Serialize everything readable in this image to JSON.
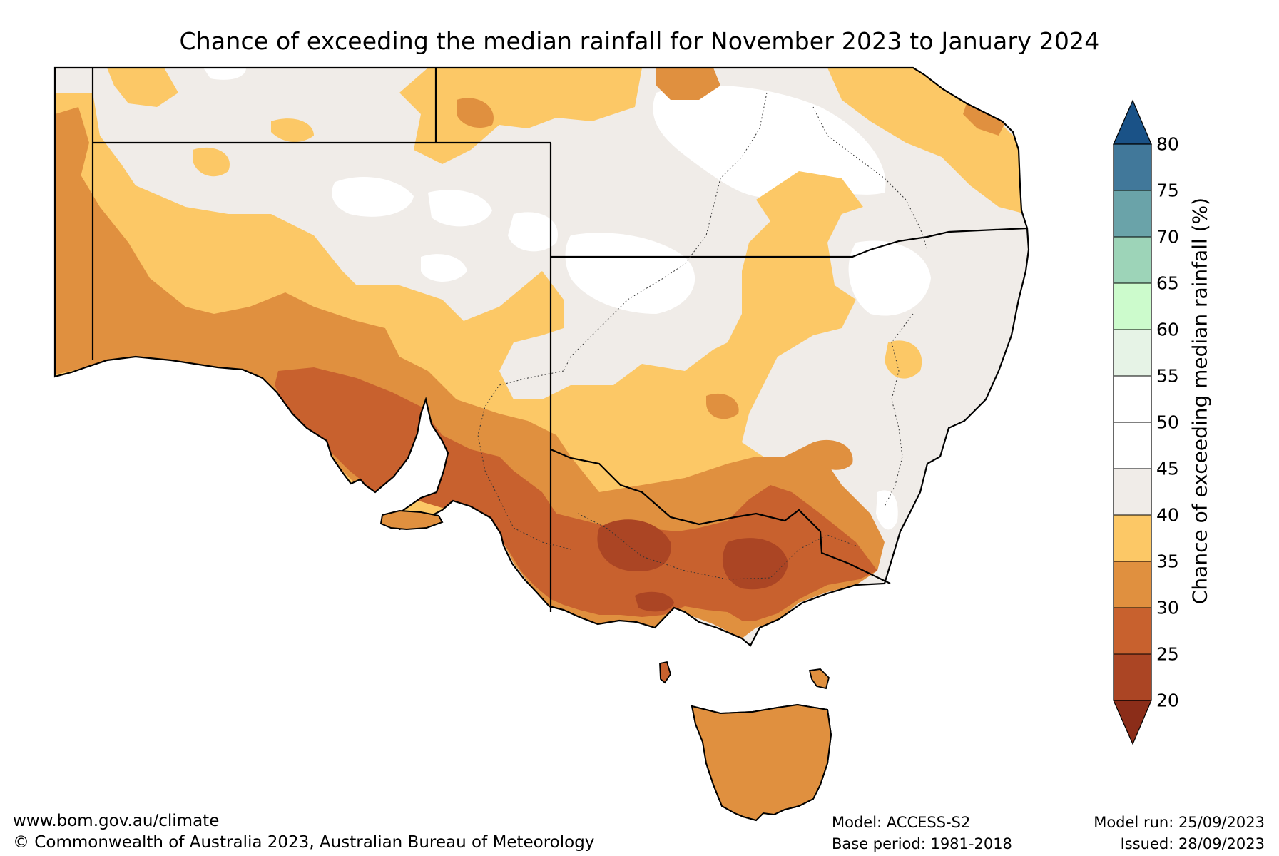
{
  "title": "Chance of exceeding the median rainfall for November 2023 to January 2024",
  "colorbar": {
    "label": "Chance of exceeding median rainfall (%)",
    "ticks": [
      "80",
      "75",
      "70",
      "65",
      "60",
      "55",
      "50",
      "45",
      "40",
      "35",
      "30",
      "25",
      "20"
    ],
    "bands": [
      {
        "range": "75-80",
        "color": "#41789a"
      },
      {
        "range": "70-75",
        "color": "#6aa3a9"
      },
      {
        "range": "65-70",
        "color": "#9dd4b8"
      },
      {
        "range": "60-65",
        "color": "#ccfbcc"
      },
      {
        "range": "55-60",
        "color": "#e6f3e6"
      },
      {
        "range": "50-55",
        "color": "#ffffff"
      },
      {
        "range": "45-50",
        "color": "#ffffff"
      },
      {
        "range": "40-45",
        "color": "#f0ece8"
      },
      {
        "range": "35-40",
        "color": "#fcc866"
      },
      {
        "range": "30-35",
        "color": "#e0903f"
      },
      {
        "range": "25-30",
        "color": "#c8612e"
      },
      {
        "range": "20-25",
        "color": "#ab4524"
      }
    ],
    "over_color": "#1a5287",
    "under_color": "#8b2d19"
  },
  "footer": {
    "url": "www.bom.gov.au/climate",
    "copyright": "© Commonwealth of Australia 2023, Australian Bureau of Meteorology",
    "model": "Model: ACCESS-S2",
    "base_period": "Base period: 1981-2018",
    "model_run": "Model run: 25/09/2023",
    "issued": "Issued: 28/09/2023"
  }
}
